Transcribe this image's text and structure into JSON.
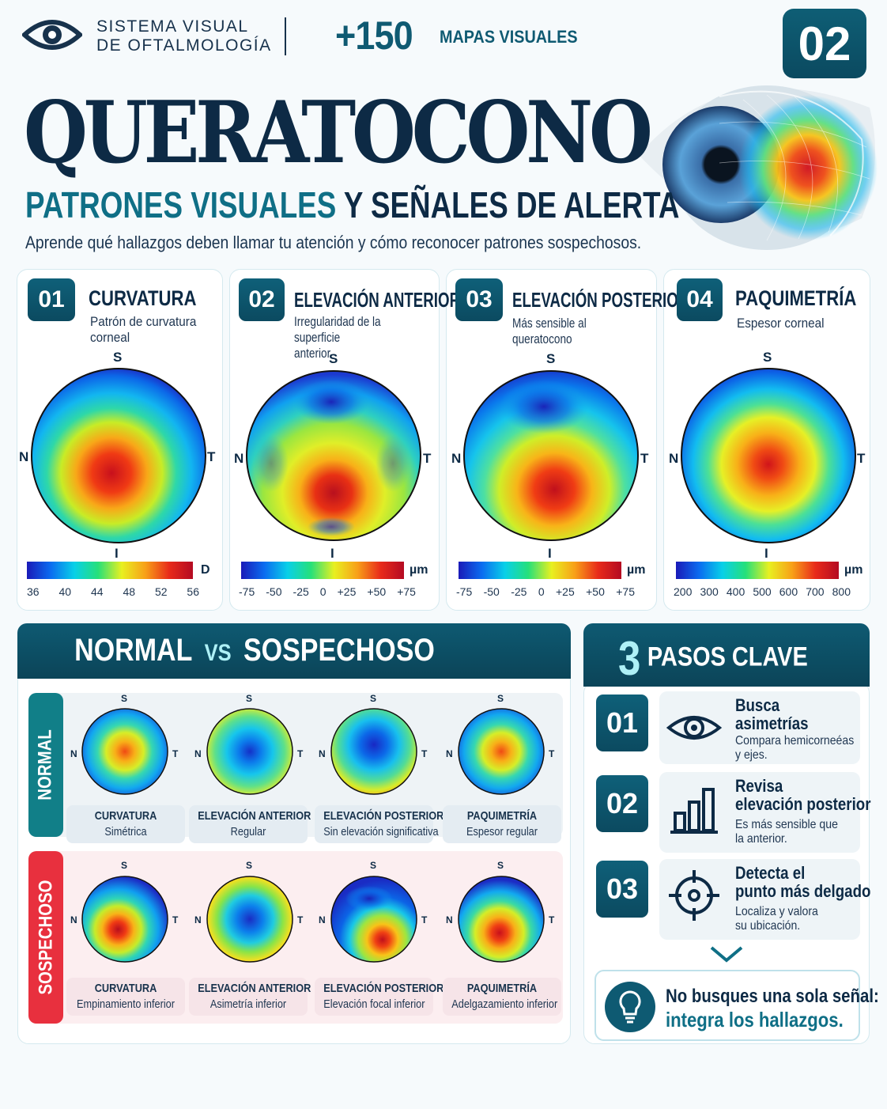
{
  "header": {
    "brand_line1": "SISTEMA VISUAL",
    "brand_line2": "DE OFTALMOLOGÍA",
    "count": "+150",
    "count_label": "MAPAS VISUALES",
    "issue_number": "02",
    "logo_icon": "eye-icon"
  },
  "hero": {
    "title": "QUERATOCONO",
    "subtitle_part1": "PATRONES VISUALES",
    "subtitle_part2": "Y SEÑALES DE ALERTA",
    "lead": "Aprende qué hallazgos deben llamar tu atención y cómo reconocer patrones sospechosos."
  },
  "maps": [
    {
      "num": "01",
      "title": "CURVATURA",
      "desc1": "Patrón de curvatura",
      "desc2": "corneal",
      "unit": "D",
      "ticks": [
        "36",
        "40",
        "44",
        "48",
        "52",
        "56"
      ]
    },
    {
      "num": "02",
      "title": "ELEVACIÓN ANTERIOR",
      "desc1": "Irregularidad de la superficie",
      "desc2": "anterior",
      "unit": "µm",
      "ticks": [
        "-75",
        "-50",
        "-25",
        "0",
        "+25",
        "+50",
        "+75"
      ]
    },
    {
      "num": "03",
      "title": "ELEVACIÓN POSTERIOR",
      "desc1": "Más sensible al queratocono",
      "desc2": "",
      "unit": "µm",
      "ticks": [
        "-75",
        "-50",
        "-25",
        "0",
        "+25",
        "+50",
        "+75"
      ]
    },
    {
      "num": "04",
      "title": "PAQUIMETRÍA",
      "desc1": "Espesor corneal",
      "desc2": "",
      "unit": "µm",
      "ticks": [
        "200",
        "300",
        "400",
        "500",
        "600",
        "700",
        "800"
      ]
    }
  ],
  "orientation": {
    "s": "S",
    "n": "N",
    "t": "T",
    "i": "I"
  },
  "comparison": {
    "normal_label": "NORMAL",
    "vs": "VS",
    "suspicious_label": "SOSPECHOSO",
    "row_normal": "NORMAL",
    "row_suspicious": "SOSPECHOSO",
    "normal": [
      {
        "title": "CURVATURA",
        "desc": "Simétrica"
      },
      {
        "title": "ELEVACIÓN ANTERIOR",
        "desc": "Regular"
      },
      {
        "title": "ELEVACIÓN POSTERIOR",
        "desc": "Sin elevación significativa"
      },
      {
        "title": "PAQUIMETRÍA",
        "desc": "Espesor regular"
      }
    ],
    "suspicious": [
      {
        "title": "CURVATURA",
        "desc": "Empinamiento inferior"
      },
      {
        "title": "ELEVACIÓN ANTERIOR",
        "desc": "Asimetría inferior"
      },
      {
        "title": "ELEVACIÓN POSTERIOR",
        "desc": "Elevación focal inferior"
      },
      {
        "title": "PAQUIMETRÍA",
        "desc": "Adelgazamiento inferior"
      }
    ]
  },
  "steps": {
    "count": "3",
    "title": "PASOS CLAVE",
    "items": [
      {
        "num": "01",
        "t1": "Busca",
        "t2": "asimetrías",
        "d1": "Compara hemicorneéas",
        "d2": "y ejes.",
        "icon": "eye-icon"
      },
      {
        "num": "02",
        "t1": "Revisa",
        "t2": "elevación posterior",
        "d1": "Es más sensible que",
        "d2": "la anterior.",
        "icon": "bar-chart-icon"
      },
      {
        "num": "03",
        "t1": "Detecta el",
        "t2": "punto más delgado",
        "d1": "Localiza y valora",
        "d2": "su ubicación.",
        "icon": "crosshair-icon"
      }
    ],
    "tip_line1": "No busques una sola señal:",
    "tip_line2": "integra los hallazgos.",
    "tip_icon": "lightbulb-icon"
  },
  "colors": {
    "navy": "#0d2a45",
    "teal": "#0f6f86",
    "normal_green": "#117f88",
    "alert_red": "#e8303e"
  }
}
